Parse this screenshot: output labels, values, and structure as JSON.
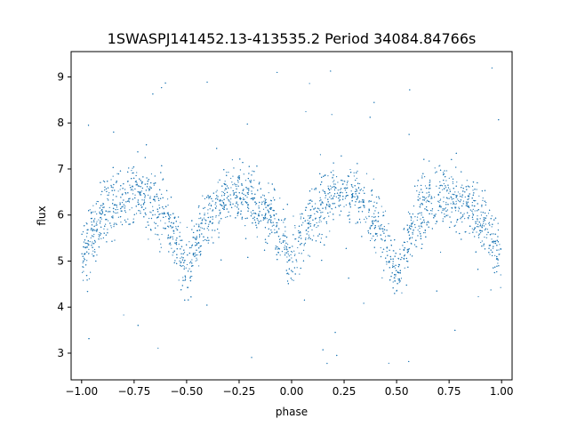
{
  "chart_data": {
    "type": "scatter",
    "title": "1SWASPJ141452.13-413535.2 Period 34084.84766s",
    "xlabel": "phase",
    "ylabel": "flux",
    "xlim": [
      -1.05,
      1.05
    ],
    "ylim": [
      2.42,
      9.55
    ],
    "xticks": [
      -1.0,
      -0.75,
      -0.5,
      -0.25,
      0.0,
      0.25,
      0.5,
      0.75,
      1.0
    ],
    "xtick_labels": [
      "−1.00",
      "−0.75",
      "−0.50",
      "−0.25",
      "0.00",
      "0.25",
      "0.50",
      "0.75",
      "1.00"
    ],
    "yticks": [
      3,
      4,
      5,
      6,
      7,
      8,
      9
    ],
    "ytick_labels": [
      "3",
      "4",
      "5",
      "6",
      "7",
      "8",
      "9"
    ],
    "grid": false,
    "legend": "none",
    "marker_color": "#1f77b4",
    "series": [
      {
        "profile_x": [
          -1.0,
          -0.9,
          -0.8,
          -0.75,
          -0.7,
          -0.6,
          -0.5,
          -0.4,
          -0.3,
          -0.25,
          -0.2,
          -0.1,
          0.0,
          0.1,
          0.2,
          0.25,
          0.3,
          0.4,
          0.5,
          0.6,
          0.7,
          0.75,
          0.8,
          0.9,
          1.0
        ],
        "profile_y": [
          5.1,
          6.0,
          6.4,
          6.45,
          6.35,
          6.0,
          4.8,
          6.0,
          6.4,
          6.45,
          6.35,
          6.0,
          5.1,
          6.0,
          6.4,
          6.45,
          6.35,
          6.0,
          4.75,
          6.0,
          6.4,
          6.45,
          6.35,
          6.0,
          5.1
        ],
        "scatter_min": 2.7,
        "scatter_max": 9.3
      }
    ]
  }
}
